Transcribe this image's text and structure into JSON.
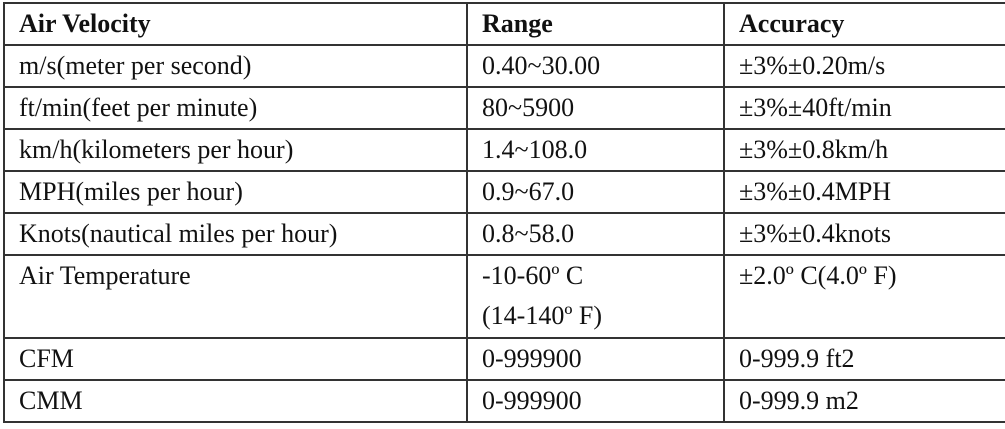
{
  "headers": [
    "Air Velocity",
    "Range",
    "Accuracy"
  ],
  "rows": [
    [
      "m/s(meter per second)",
      "0.40~30.00",
      "±3%±0.20m/s"
    ],
    [
      "ft/min(feet per minute)",
      "80~5900",
      "±3%±40ft/min"
    ],
    [
      "km/h(kilometers per hour)",
      "1.4~108.0",
      "±3%±0.8km/h"
    ],
    [
      "MPH(miles per hour)",
      "0.9~67.0",
      "±3%±0.4MPH"
    ],
    [
      "Knots(nautical miles per hour)",
      "0.8~58.0",
      "±3%±0.4knots"
    ],
    [
      "Air Temperature",
      "-10-60º C",
      "±2.0º C(4.0º F)"
    ],
    [
      "CFM",
      "0-999900",
      "0-999.9 ft2"
    ],
    [
      "CMM",
      "0-999900",
      "0-999.9 m2"
    ]
  ],
  "temp_range_line2": "(14-140º F)"
}
